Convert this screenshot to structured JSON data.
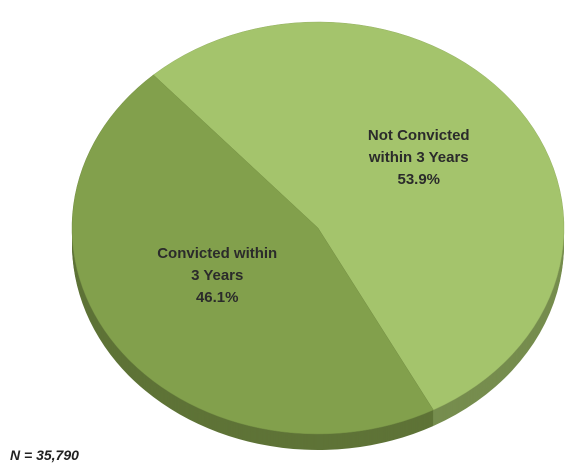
{
  "chart_data": {
    "type": "pie",
    "categories": [
      "Not Convicted within 3 Years",
      "Convicted within 3 Years"
    ],
    "values": [
      53.9,
      46.1
    ],
    "value_labels": [
      "53.9%",
      "46.1%"
    ],
    "colors": [
      "#a4c46c",
      "#82a04c"
    ],
    "annotation": "N = 35,790"
  }
}
